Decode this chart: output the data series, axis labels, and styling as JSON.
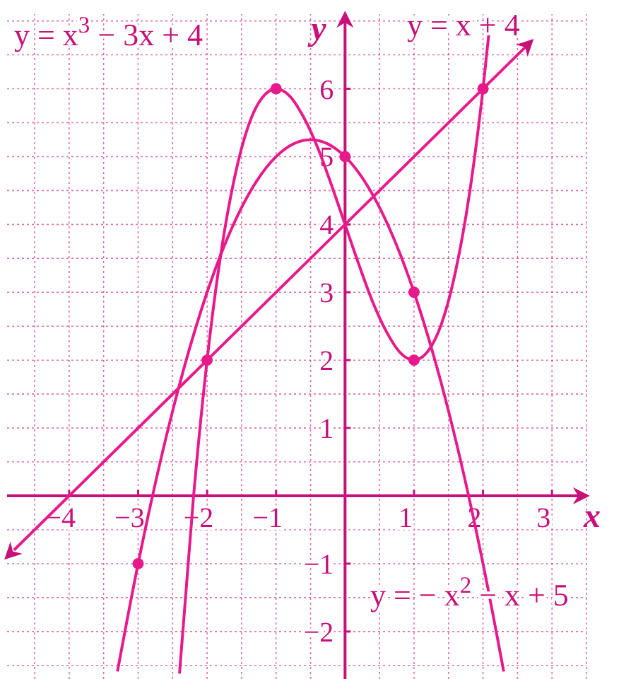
{
  "chart_data": {
    "type": "line",
    "xlabel": "x",
    "ylabel": "y",
    "xlim": [
      -4.9,
      3.5
    ],
    "ylim": [
      -2.7,
      7.1
    ],
    "xticks": [
      {
        "value": -4,
        "label": "−4"
      },
      {
        "value": -3,
        "label": "−3"
      },
      {
        "value": -2,
        "label": "−2"
      },
      {
        "value": -1,
        "label": "−1"
      },
      1,
      2,
      3
    ],
    "yticks": [
      {
        "value": -2,
        "label": "−2"
      },
      {
        "value": -1,
        "label": "−1"
      },
      1,
      2,
      3,
      4,
      5,
      6
    ],
    "grid": true,
    "series": [
      {
        "color": "#e8198b",
        "x": [
          -2.4,
          -2.2,
          -2,
          -1.8,
          -1.6,
          -1.4,
          -1.2,
          -1,
          -0.8,
          -0.6,
          -0.4,
          -0.2,
          0,
          0.2,
          0.4,
          0.6,
          0.8,
          1,
          1.2,
          1.4,
          1.6,
          1.8,
          2,
          2.1
        ],
        "values": [
          -2.62,
          -0.05,
          2,
          3.57,
          4.7,
          5.46,
          5.87,
          6,
          5.89,
          5.58,
          5.14,
          4.59,
          4,
          3.41,
          2.86,
          2.42,
          2.11,
          2,
          2.13,
          2.54,
          3.3,
          4.43,
          6,
          6.96
        ]
      },
      {
        "color": "#e8198b",
        "x": [
          -3.3,
          -3,
          -2.5,
          -2,
          -1.5,
          -1,
          -0.5,
          0,
          0.5,
          1,
          1.5,
          2,
          2.3
        ],
        "values": [
          -2.59,
          -1,
          1.25,
          3,
          4.25,
          5,
          5.25,
          5,
          4.25,
          3,
          1.25,
          -1,
          -2.59
        ]
      },
      {
        "color": "#e8198b",
        "x": [
          -4.8,
          2.7
        ],
        "values": [
          -0.8,
          6.7
        ]
      },
      {
        "type": "scatter",
        "color": "#e8198b",
        "marker": "circle",
        "x": [
          -3,
          -2,
          -1,
          0,
          1,
          1,
          2
        ],
        "values": [
          -1,
          2,
          6,
          5,
          2,
          3,
          6
        ]
      }
    ],
    "annotations": [
      "y = x$^{3}$ − 3x + 4",
      "y = x + 4",
      "y = − x$^{2}$ − x + 5"
    ]
  }
}
